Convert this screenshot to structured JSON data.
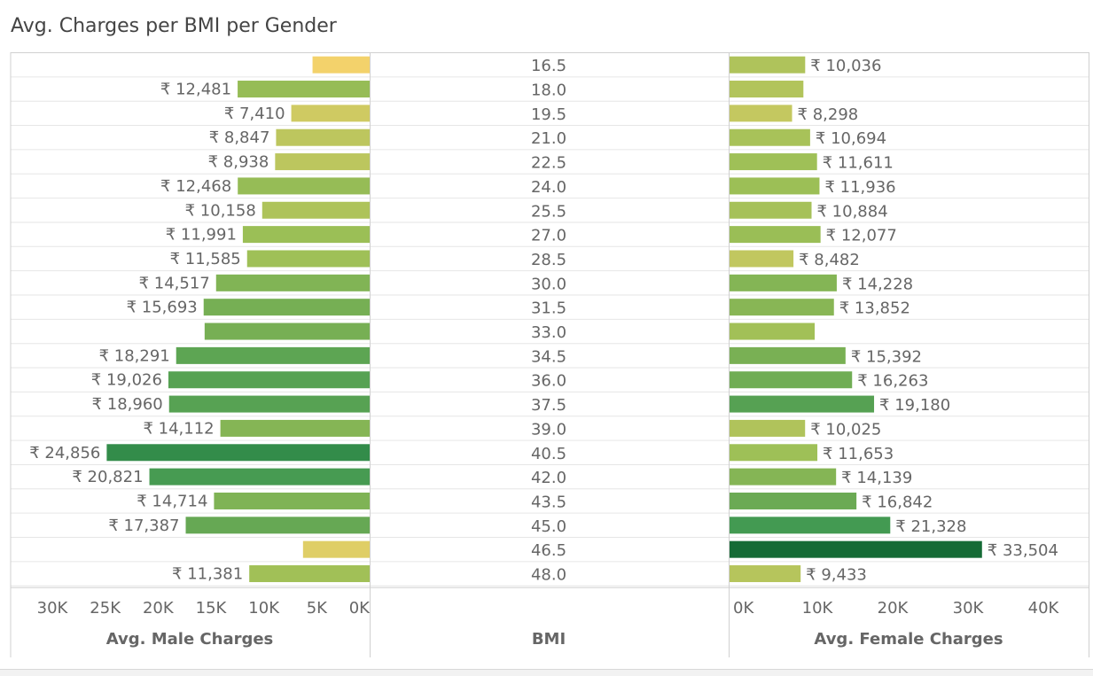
{
  "title": "Avg. Charges per BMI per Gender",
  "currency_symbol": "₹",
  "colors": {
    "low": "#f3d26b",
    "high": "#156b36",
    "grid": "#e6e6e6",
    "pane_border": "#d0d0d0",
    "label": "#666666",
    "axis_label": "#666666"
  },
  "chart_data": {
    "type": "bar",
    "categories": [
      "16.5",
      "18.0",
      "19.5",
      "21.0",
      "22.5",
      "24.0",
      "25.5",
      "27.0",
      "28.5",
      "30.0",
      "31.5",
      "33.0",
      "34.5",
      "36.0",
      "37.5",
      "39.0",
      "40.5",
      "42.0",
      "43.5",
      "45.0",
      "46.5",
      "48.0"
    ],
    "xlabel_center": "BMI",
    "series": [
      {
        "name": "Avg. Male Charges",
        "values": [
          5400,
          12481,
          7410,
          8847,
          8938,
          12468,
          10158,
          11991,
          11585,
          14517,
          15693,
          15600,
          18291,
          19026,
          18960,
          14112,
          24856,
          20821,
          14714,
          17387,
          6300,
          11381
        ],
        "labels": [
          "",
          "₹ 12,481",
          "₹ 7,410",
          "₹ 8,847",
          "₹ 8,938",
          "₹ 12,468",
          "₹ 10,158",
          "₹ 11,991",
          "₹ 11,585",
          "₹ 14,517",
          "₹ 15,693",
          "",
          "₹ 18,291",
          "₹ 19,026",
          "₹ 18,960",
          "₹ 14,112",
          "₹ 24,856",
          "₹ 20,821",
          "₹ 14,714",
          "₹ 17,387",
          "",
          "₹ 11,381"
        ],
        "axis_ticks": [
          "30K",
          "25K",
          "20K",
          "15K",
          "10K",
          "5K",
          "0K"
        ],
        "tick_values": [
          30000,
          25000,
          20000,
          15000,
          10000,
          5000,
          0
        ],
        "xlim": [
          0,
          31000
        ],
        "direction": "reversed"
      },
      {
        "name": "Avg. Female Charges",
        "values": [
          10036,
          9800,
          8298,
          10694,
          11611,
          11936,
          10884,
          12077,
          8482,
          14228,
          13852,
          11300,
          15392,
          16263,
          19180,
          10025,
          11653,
          14139,
          16842,
          21328,
          33504,
          9433
        ],
        "labels": [
          "₹ 10,036",
          "",
          "₹ 8,298",
          "₹ 10,694",
          "₹ 11,611",
          "₹ 11,936",
          "₹ 10,884",
          "₹ 12,077",
          "₹ 8,482",
          "₹ 14,228",
          "₹ 13,852",
          "",
          "₹ 15,392",
          "₹ 16,263",
          "₹ 19,180",
          "₹ 10,025",
          "₹ 11,653",
          "₹ 14,139",
          "₹ 16,842",
          "₹ 21,328",
          "₹ 33,504",
          "₹ 9,433"
        ],
        "axis_ticks": [
          "0K",
          "10K",
          "20K",
          "30K",
          "40K"
        ],
        "tick_values": [
          0,
          10000,
          20000,
          30000,
          40000
        ],
        "xlim": [
          0,
          44000
        ],
        "direction": "normal"
      }
    ],
    "color_scale": [
      5400,
      33504
    ],
    "grid": true,
    "legend": "none"
  }
}
